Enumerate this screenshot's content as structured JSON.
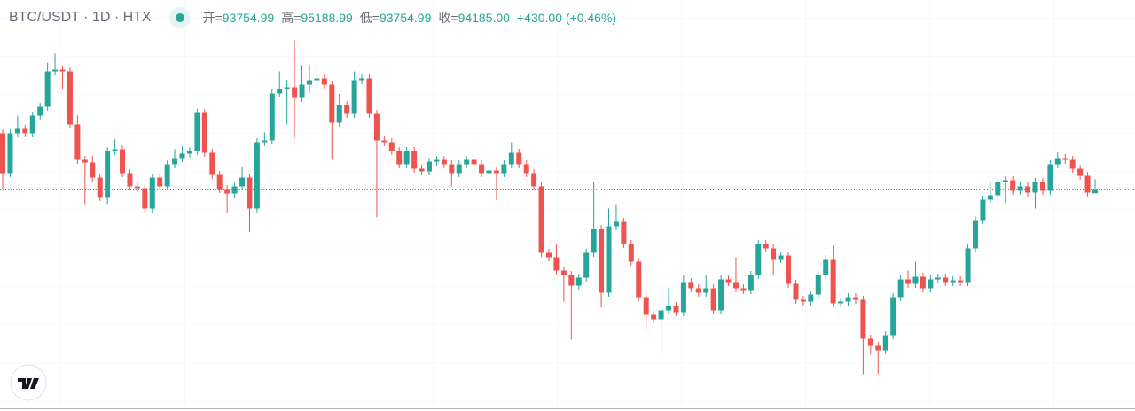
{
  "chart_data": {
    "type": "candlestick",
    "title": "BTC/USDT · 1D · HTX",
    "legend_values": [
      {
        "label": "开=",
        "value": "93754.99"
      },
      {
        "label": "高=",
        "value": "95188.99"
      },
      {
        "label": "低=",
        "value": "93754.99"
      },
      {
        "label": "收=",
        "value": "94185.00"
      }
    ],
    "change": "+430.00 (+0.46%)",
    "up_color": "#26a69a",
    "down_color": "#ef5350",
    "grid": true,
    "last_price_line": true,
    "ylim": [
      72000,
      113400
    ],
    "open": [
      99855,
      95805,
      99855,
      100305,
      99855,
      101655,
      102555,
      106155,
      106335,
      106155,
      100755,
      97155,
      96885,
      95355,
      93375,
      98055,
      98235,
      95805,
      94455,
      94275,
      92205,
      95355,
      94455,
      96705,
      97335,
      97785,
      98055,
      101925,
      97875,
      95625,
      94185,
      93735,
      94455,
      95355,
      92205,
      98955,
      99135,
      103905,
      104355,
      104535,
      103455,
      104805,
      105255,
      105435,
      104805,
      100935,
      102735,
      101835,
      105255,
      105435,
      101835,
      99135,
      98955,
      98055,
      96705,
      98055,
      96255,
      95985,
      96975,
      97155,
      96705,
      95805,
      96705,
      97155,
      96705,
      95805,
      96075,
      95805,
      96705,
      97875,
      96705,
      95805,
      94455,
      87705,
      87255,
      85905,
      85455,
      84375,
      85185,
      87705,
      90135,
      83655,
      90405,
      90855,
      88605,
      86805,
      83205,
      81405,
      80955,
      81855,
      82305,
      81675,
      84735,
      84105,
      83655,
      84105,
      81855,
      85005,
      84735,
      84105,
      83925,
      85455,
      88605,
      88155,
      87075,
      87435,
      84555,
      82935,
      82755,
      83475,
      85455,
      87075,
      82575,
      82755,
      83205,
      82935,
      78975,
      78255,
      77805,
      79335,
      83205,
      85005,
      84555,
      85275,
      84105,
      85005,
      85185,
      84735,
      84915,
      84735,
      88155,
      91035,
      93105,
      93555,
      94905,
      95085,
      94005,
      94455,
      93825,
      94905,
      94005,
      96705,
      97335,
      97155,
      96255,
      95535,
      93754.99
    ],
    "high": [
      100255,
      100255,
      101655,
      100705,
      102055,
      102955,
      107055,
      107955,
      106735,
      106555,
      101655,
      97555,
      97555,
      95755,
      98455,
      99255,
      98635,
      96205,
      94855,
      94675,
      95755,
      95755,
      97105,
      98255,
      98555,
      98455,
      102355,
      102325,
      98275,
      96025,
      94585,
      94855,
      96505,
      95755,
      99355,
      99955,
      104305,
      106155,
      105305,
      109305,
      106805,
      106855,
      106855,
      105835,
      105205,
      103855,
      103135,
      106155,
      105835,
      105835,
      102235,
      99535,
      99355,
      98455,
      98455,
      98455,
      96655,
      97375,
      97555,
      97555,
      97105,
      97105,
      97555,
      97555,
      97105,
      96475,
      96475,
      97105,
      98955,
      98275,
      97105,
      96205,
      94855,
      88105,
      88555,
      86305,
      85855,
      85585,
      88105,
      94905,
      90535,
      92205,
      92655,
      91255,
      89005,
      87205,
      83605,
      81805,
      82255,
      84105,
      82705,
      85455,
      85135,
      84505,
      85455,
      84505,
      85405,
      85405,
      87255,
      84505,
      85855,
      89005,
      89005,
      88555,
      87835,
      87835,
      84955,
      83335,
      83875,
      85855,
      87475,
      88455,
      83155,
      83605,
      83605,
      83335,
      79375,
      78655,
      79735,
      83605,
      85405,
      85905,
      86805,
      85675,
      85405,
      85585,
      85585,
      85315,
      85315,
      88555,
      91435,
      93505,
      94905,
      95305,
      95485,
      95485,
      94855,
      94855,
      95305,
      95305,
      97105,
      97905,
      97735,
      97555,
      96655,
      95935,
      95188.99
    ],
    "low": [
      94185,
      95405,
      99455,
      99455,
      99455,
      101255,
      102155,
      105755,
      104355,
      100355,
      96755,
      92655,
      94955,
      92975,
      92655,
      97655,
      95405,
      94055,
      93875,
      91805,
      91805,
      94055,
      94055,
      96305,
      96935,
      97385,
      97655,
      97475,
      95225,
      93785,
      91755,
      93335,
      94055,
      89805,
      91805,
      98555,
      98735,
      103505,
      100755,
      99405,
      103055,
      103955,
      104355,
      104405,
      97155,
      100535,
      101435,
      101435,
      104855,
      101435,
      91305,
      98555,
      97655,
      96305,
      96305,
      95855,
      95585,
      95585,
      96575,
      96305,
      94455,
      95405,
      96305,
      96305,
      95405,
      95405,
      93075,
      95405,
      96305,
      96305,
      95405,
      94055,
      87305,
      86855,
      85505,
      82755,
      78885,
      83975,
      84785,
      87305,
      82155,
      83255,
      90005,
      88205,
      86405,
      82805,
      79905,
      80555,
      77355,
      81455,
      81275,
      81275,
      83705,
      83255,
      83255,
      81455,
      81455,
      84335,
      83705,
      83525,
      83525,
      85055,
      87755,
      85455,
      86675,
      84155,
      82535,
      82355,
      82355,
      83075,
      85055,
      82175,
      82175,
      82355,
      82535,
      75375,
      77355,
      75375,
      77405,
      78935,
      82805,
      84155,
      84155,
      83705,
      83705,
      84605,
      84335,
      84335,
      84335,
      84335,
      87755,
      90635,
      92705,
      93155,
      92805,
      93605,
      93605,
      93425,
      92205,
      93605,
      93605,
      96305,
      96755,
      95855,
      95135,
      93425,
      93754.99
    ],
    "close": [
      95805,
      99855,
      100305,
      99855,
      101655,
      102555,
      106155,
      106335,
      106155,
      100755,
      97155,
      96885,
      95355,
      93375,
      98055,
      98235,
      95805,
      94455,
      94275,
      92205,
      95355,
      94455,
      96705,
      97335,
      97785,
      98055,
      101925,
      97875,
      95625,
      94185,
      93735,
      94455,
      95355,
      92205,
      98955,
      99135,
      103905,
      104355,
      104535,
      103455,
      104805,
      105255,
      105435,
      104805,
      100935,
      102735,
      101835,
      105255,
      105435,
      101835,
      99135,
      98955,
      98055,
      96705,
      98055,
      96255,
      95985,
      96975,
      97155,
      96705,
      95805,
      96705,
      97155,
      96705,
      95805,
      96075,
      95805,
      96705,
      97875,
      96705,
      95805,
      94455,
      87705,
      87255,
      85905,
      85455,
      84375,
      85185,
      87705,
      90135,
      83655,
      90405,
      90855,
      88605,
      86805,
      83205,
      81405,
      80955,
      81855,
      82305,
      81675,
      84735,
      84105,
      83655,
      84105,
      81855,
      85005,
      84735,
      84105,
      83925,
      85455,
      88605,
      88155,
      87075,
      87435,
      84555,
      82935,
      82755,
      83475,
      85455,
      87075,
      82575,
      82755,
      83205,
      82935,
      78975,
      78255,
      77805,
      79335,
      83205,
      85005,
      84555,
      85275,
      84105,
      85005,
      85185,
      84735,
      84915,
      84735,
      88155,
      91035,
      93105,
      93555,
      94905,
      95085,
      94005,
      94455,
      93825,
      94905,
      94005,
      96705,
      97335,
      97155,
      96255,
      95535,
      93825,
      94185.0
    ]
  }
}
